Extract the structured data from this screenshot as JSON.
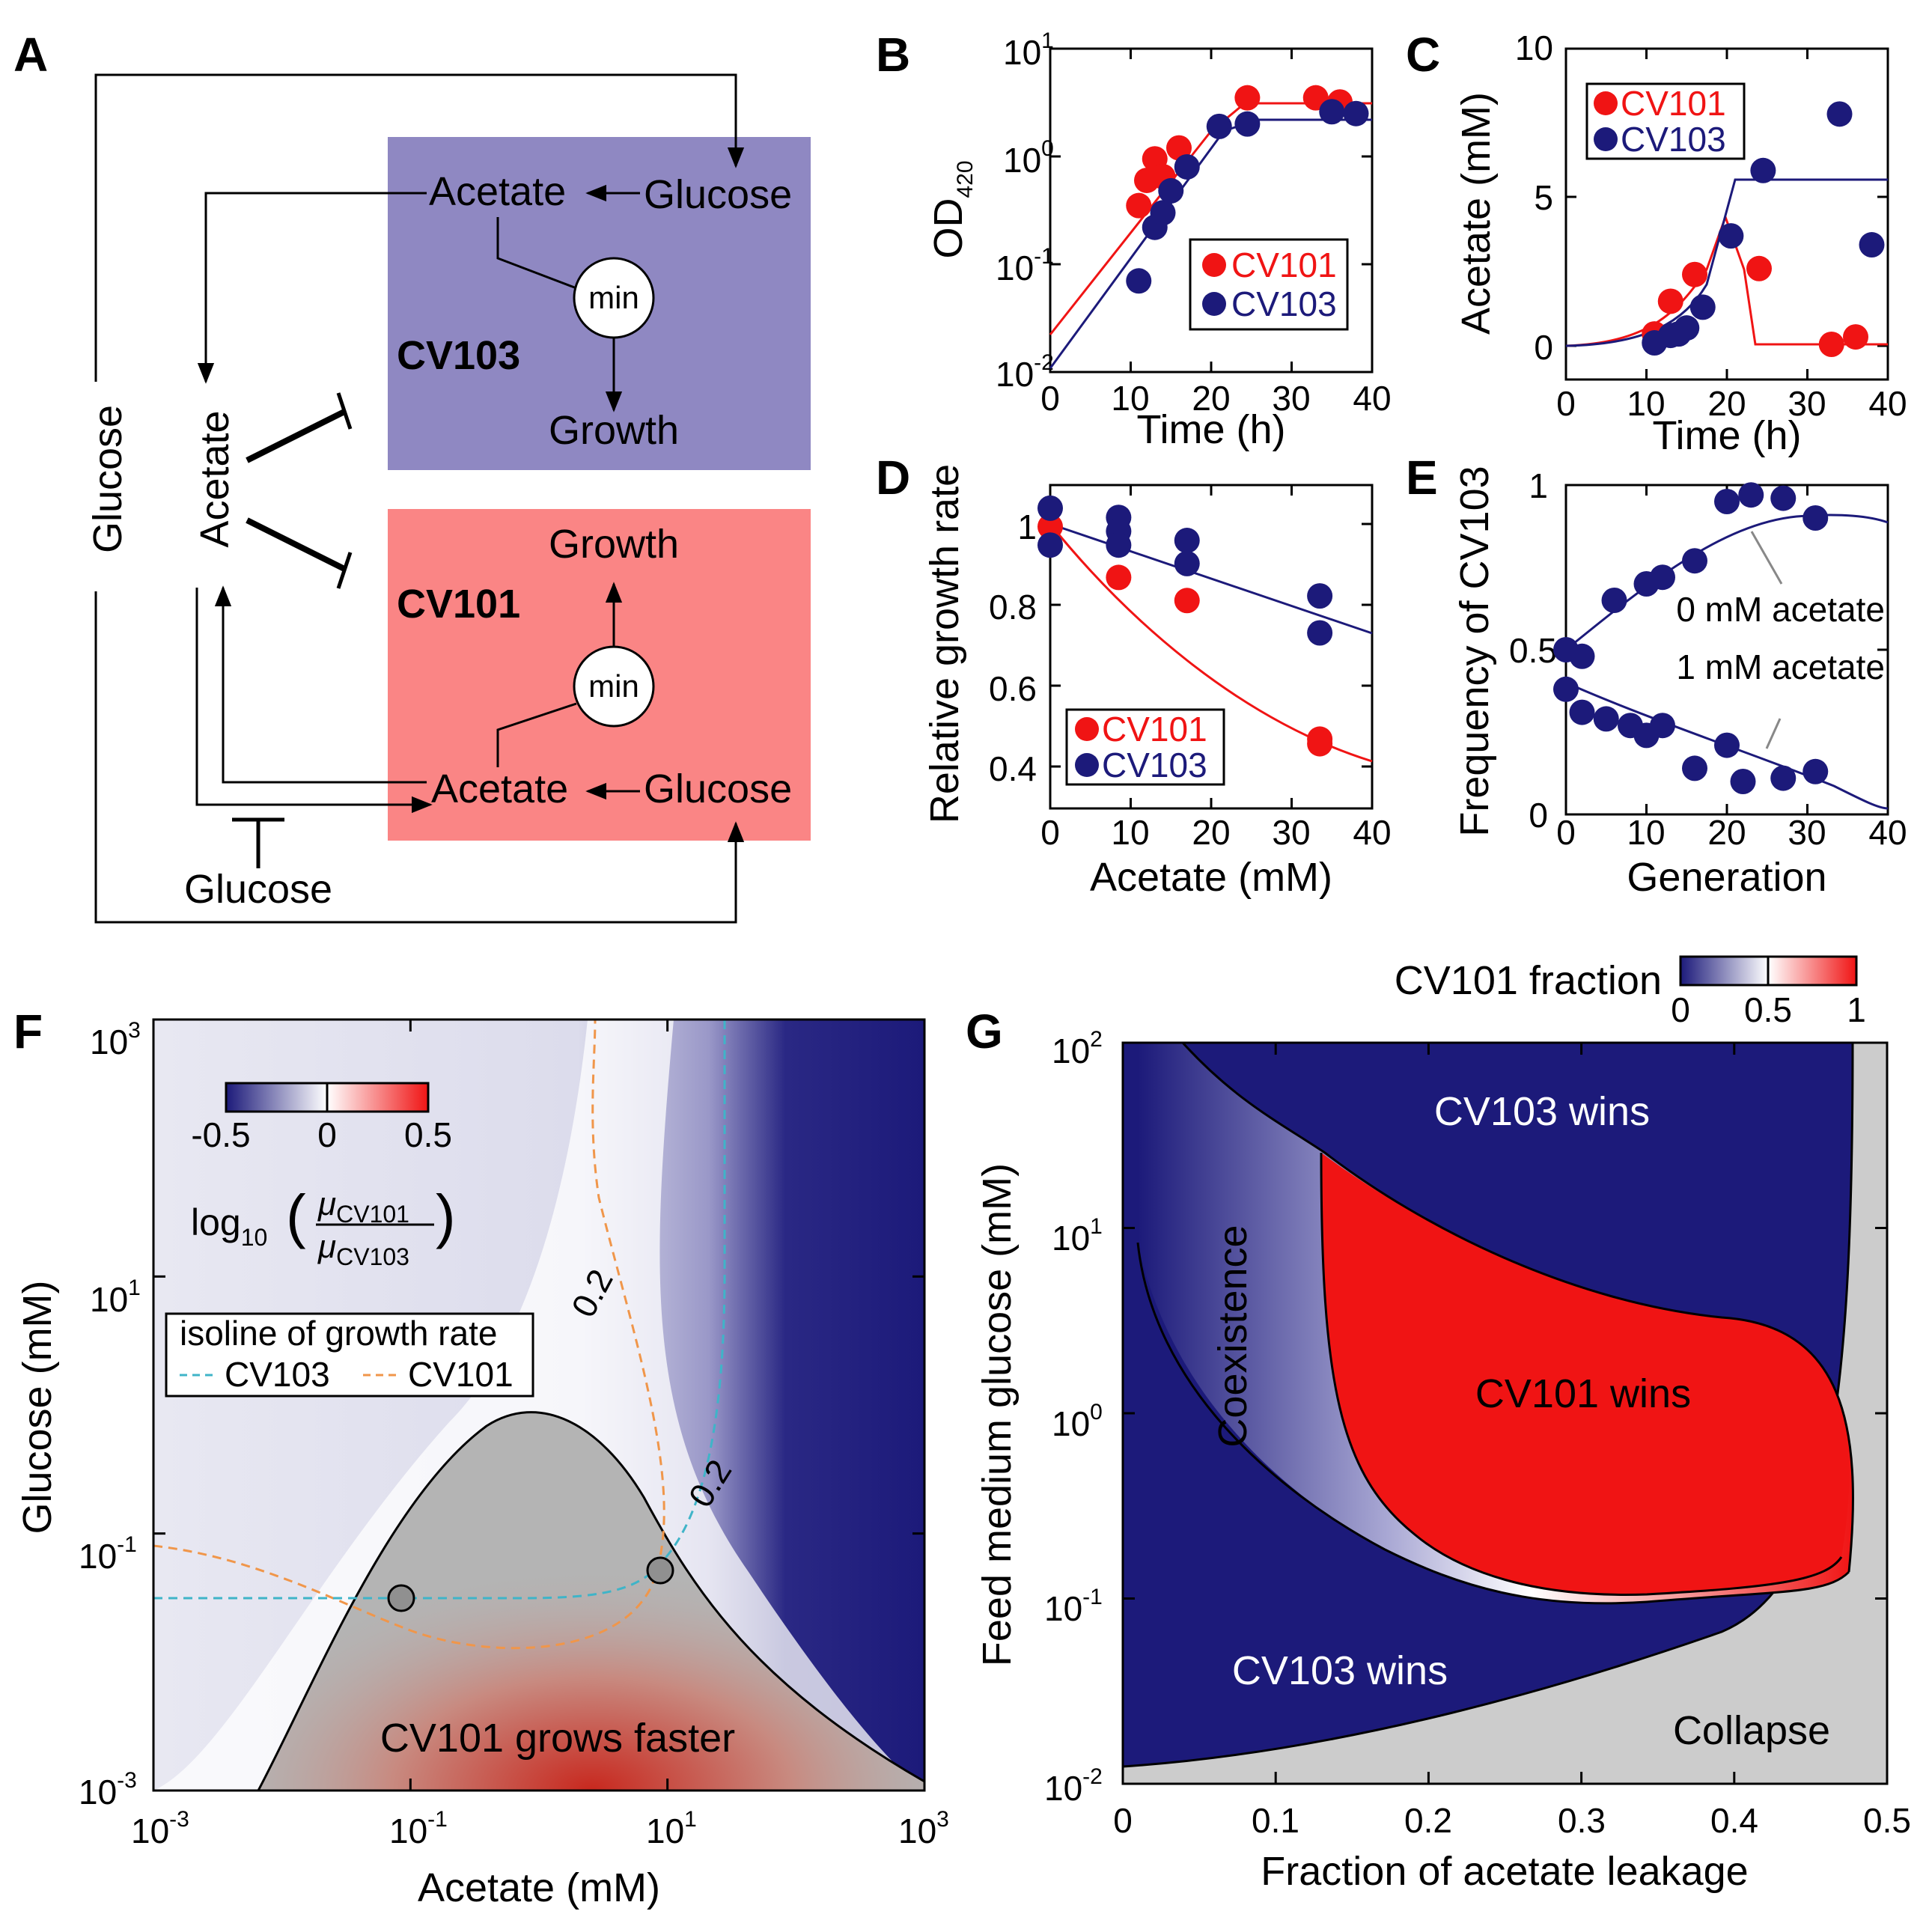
{
  "colors": {
    "cv101": "#f01414",
    "cv103": "#1c1a7a",
    "box_cv103": "#8f88c2",
    "box_cv101": "#fa8585",
    "cmap_neg": "#1c1a7a",
    "cmap_mid": "#ffffff",
    "cmap_pos": "#f01414",
    "collapse": "#cccccc",
    "gray_region": "#b4b4b4",
    "iso_cv103": "#3fb4c8",
    "iso_cv101": "#f0964a"
  },
  "panelA": {
    "letter": "A",
    "box_top": {
      "acetate": "Acetate",
      "glucose": "Glucose",
      "min": "min",
      "strain": "CV103",
      "growth": "Growth"
    },
    "box_bottom": {
      "acetate": "Acetate",
      "glucose": "Glucose",
      "min": "min",
      "strain": "CV101",
      "growth": "Growth"
    },
    "side_glucose": "Glucose",
    "side_acetate": "Acetate",
    "bottom_glucose": "Glucose"
  },
  "panelB": {
    "letter": "B",
    "ylabel": "OD",
    "ylabel_sub": "420",
    "xlabel": "Time (h)",
    "yticks_base": [
      "10",
      "10",
      "10",
      "10"
    ],
    "yticks_exp": [
      "1",
      "0",
      "-1",
      "-2"
    ],
    "xticks": [
      "0",
      "10",
      "20",
      "30",
      "40"
    ],
    "legend": [
      "CV101",
      "CV103"
    ]
  },
  "panelC": {
    "letter": "C",
    "ylabel": "Acetate (mM)",
    "xlabel": "Time (h)",
    "yticks": [
      "10",
      "5",
      "0"
    ],
    "xticks": [
      "0",
      "10",
      "20",
      "30",
      "40"
    ],
    "legend": [
      "CV101",
      "CV103"
    ]
  },
  "panelD": {
    "letter": "D",
    "ylabel": "Relative growth rate",
    "xlabel": "Acetate (mM)",
    "yticks": [
      "1",
      "0.8",
      "0.6",
      "0.4"
    ],
    "xticks": [
      "0",
      "10",
      "20",
      "30",
      "40"
    ],
    "legend": [
      "CV101",
      "CV103"
    ]
  },
  "panelE": {
    "letter": "E",
    "ylabel": "Frequency of CV103",
    "xlabel": "Generation",
    "yticks": [
      "1",
      "0.5",
      "0"
    ],
    "xticks": [
      "0",
      "10",
      "20",
      "30",
      "40"
    ],
    "ann_0": "0 mM acetate",
    "ann_1": "1 mM acetate"
  },
  "panelF": {
    "letter": "F",
    "ylabel": "Glucose (mM)",
    "xlabel": "Acetate (mM)",
    "xticks_base": [
      "10",
      "10",
      "10",
      "10"
    ],
    "xticks_exp": [
      "-3",
      "-1",
      "1",
      "3"
    ],
    "yticks_base": [
      "10",
      "10",
      "10",
      "10"
    ],
    "yticks_exp": [
      "3",
      "1",
      "-1",
      "-3"
    ],
    "cbar_ticks": [
      "-0.5",
      "0",
      "0.5"
    ],
    "formula_log": "log",
    "formula_sub": "10",
    "formula_num": "μ",
    "formula_num_sub": "CV101",
    "formula_den": "μ",
    "formula_den_sub": "CV103",
    "legend_title": "isoline of growth rate",
    "legend_cv103": "CV103",
    "legend_cv101": "CV101",
    "iso_label_1": "0.2",
    "iso_label_2": "0.2",
    "region_label": "CV101 grows faster"
  },
  "panelG": {
    "letter": "G",
    "ylabel": "Feed medium glucose (mM)",
    "xlabel": "Fraction of acetate leakage",
    "xticks": [
      "0",
      "0.1",
      "0.2",
      "0.3",
      "0.4",
      "0.5"
    ],
    "yticks_base": [
      "10",
      "10",
      "10",
      "10",
      "10"
    ],
    "yticks_exp": [
      "2",
      "1",
      "0",
      "-1",
      "-2"
    ],
    "cbar_title": "CV101 fraction",
    "cbar_ticks": [
      "0",
      "0.5",
      "1"
    ],
    "label_top": "CV103 wins",
    "label_bottom": "CV103 wins",
    "label_red": "CV101 wins",
    "label_coex": "Coexistence",
    "label_collapse": "Collapse"
  },
  "chart_data": [
    {
      "panel": "B",
      "type": "scatter",
      "xlabel": "Time (h)",
      "ylabel": "OD420",
      "yscale": "log",
      "xlim": [
        0,
        40
      ],
      "ylim": [
        0.01,
        10
      ],
      "series": [
        {
          "name": "CV101",
          "x": [
            11,
            12,
            13,
            14,
            16,
            24.5,
            33,
            36
          ],
          "y": [
            0.35,
            0.6,
            0.95,
            0.65,
            1.2,
            3.5,
            3.5,
            3.2
          ]
        },
        {
          "name": "CV103",
          "x": [
            11,
            13,
            14,
            15,
            17,
            21,
            24.5,
            35,
            38
          ],
          "y": [
            0.07,
            0.22,
            0.3,
            0.48,
            0.8,
            1.9,
            2.0,
            2.6,
            2.5
          ]
        }
      ]
    },
    {
      "panel": "C",
      "type": "scatter",
      "xlabel": "Time (h)",
      "ylabel": "Acetate (mM)",
      "xlim": [
        0,
        40
      ],
      "ylim": [
        0,
        10
      ],
      "series": [
        {
          "name": "CV101",
          "x": [
            11,
            13,
            16,
            24,
            33,
            36
          ],
          "y": [
            0.4,
            1.5,
            2.4,
            2.6,
            0.05,
            0.3
          ]
        },
        {
          "name": "CV103",
          "x": [
            11,
            13,
            14,
            15,
            17,
            20.5,
            24.5,
            34,
            38
          ],
          "y": [
            0.1,
            0.35,
            0.4,
            0.6,
            1.3,
            3.7,
            5.9,
            7.8,
            3.4
          ]
        }
      ]
    },
    {
      "panel": "D",
      "type": "scatter",
      "xlabel": "Acetate (mM)",
      "ylabel": "Relative growth rate",
      "xlim": [
        0,
        40
      ],
      "ylim": [
        0.35,
        1.05
      ],
      "series": [
        {
          "name": "CV101",
          "x": [
            0,
            8.5,
            17,
            33.5,
            33.5
          ],
          "y": [
            0.96,
            0.85,
            0.8,
            0.5,
            0.49
          ]
        },
        {
          "name": "CV103",
          "x": [
            0,
            0,
            8.5,
            8.5,
            8.5,
            17,
            17,
            33.5,
            33.5
          ],
          "y": [
            1.0,
            0.92,
            0.98,
            0.95,
            0.92,
            0.93,
            0.88,
            0.81,
            0.73
          ]
        }
      ]
    },
    {
      "panel": "E",
      "type": "scatter",
      "xlabel": "Generation",
      "ylabel": "Frequency of CV103",
      "xlim": [
        0,
        40
      ],
      "ylim": [
        0,
        1
      ],
      "series": [
        {
          "name": "0 mM acetate",
          "x": [
            0,
            2,
            6,
            10,
            12,
            16,
            20,
            23,
            27,
            31
          ],
          "y": [
            0.5,
            0.48,
            0.65,
            0.7,
            0.72,
            0.77,
            0.95,
            0.97,
            0.96,
            0.9
          ]
        },
        {
          "name": "1 mM acetate",
          "x": [
            0,
            2,
            5,
            8,
            10,
            12,
            16,
            20,
            22,
            27,
            31
          ],
          "y": [
            0.38,
            0.31,
            0.29,
            0.27,
            0.24,
            0.27,
            0.14,
            0.21,
            0.1,
            0.11,
            0.13
          ]
        }
      ]
    },
    {
      "panel": "F",
      "type": "heatmap",
      "xlabel": "Acetate (mM)",
      "ylabel": "Glucose (mM)",
      "xscale": "log",
      "yscale": "log",
      "xlim": [
        0.001,
        1000
      ],
      "ylim": [
        0.001,
        1000
      ],
      "crossing_points": [
        [
          0.09,
          0.04
        ],
        [
          9,
          0.07
        ]
      ]
    },
    {
      "panel": "G",
      "type": "heatmap",
      "xlabel": "Fraction of acetate leakage",
      "ylabel": "Feed medium glucose (mM)",
      "yscale": "log",
      "xlim": [
        0,
        0.5
      ],
      "ylim": [
        0.01,
        100
      ]
    }
  ]
}
